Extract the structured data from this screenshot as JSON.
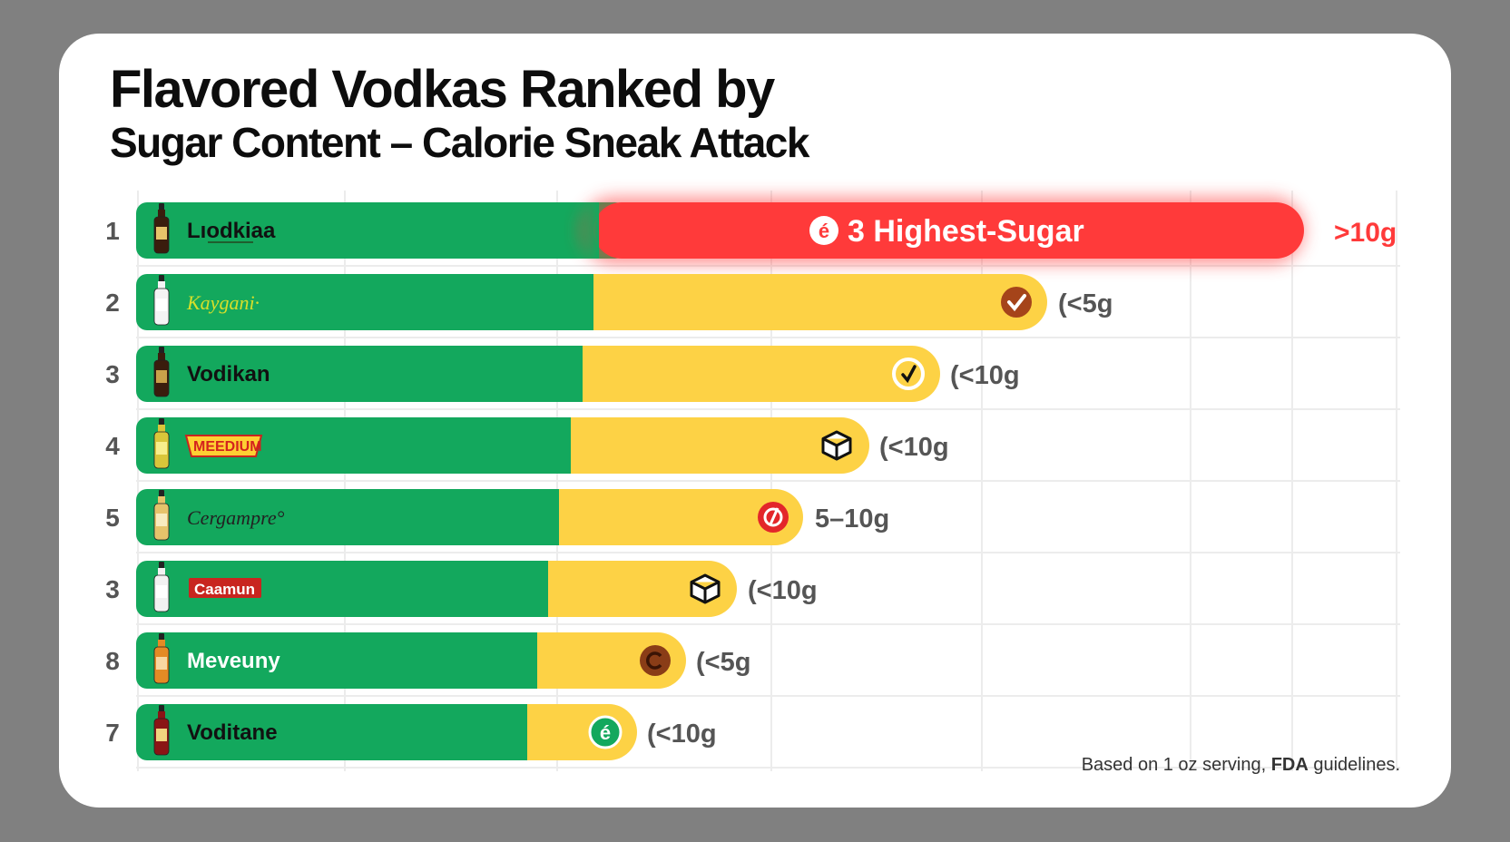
{
  "title_line1": "Flavored Vodkas Ranked by",
  "title_line2": "Sugar Content – Calorie Sneak Attack",
  "footnote_prefix": "Based on 1 oz serving, ",
  "footnote_bold": "FDA",
  "footnote_suffix": " guidelines.",
  "colors": {
    "background": "#808080",
    "card": "#ffffff",
    "green": "#13a85d",
    "yellow": "#fdd245",
    "red": "#ff3a3a",
    "text_dark": "#111111",
    "value_label": "#555555"
  },
  "chart_data": {
    "type": "bar",
    "orientation": "horizontal",
    "grid": true,
    "rows": [
      {
        "rank": "1",
        "brand": "Lıodkiaa",
        "value_label": ">10g",
        "highlight_label": "3 Highest-Sugar",
        "highlight_icon_glyph": "é",
        "icon": "bottle-icon"
      },
      {
        "rank": "2",
        "brand": "Kaygani·",
        "value_label": "(<5g",
        "icon": "check-circle-icon"
      },
      {
        "rank": "3",
        "brand": "Vodikan",
        "value_label": "(<10g",
        "icon": "check-badge-icon"
      },
      {
        "rank": "4",
        "brand": "MEEDIUM",
        "value_label": "(<10g",
        "icon": "cube-icon"
      },
      {
        "rank": "5",
        "brand": "Cergampre°",
        "value_label": "5–10g",
        "icon": "swirl-icon"
      },
      {
        "rank": "3",
        "brand": "Caamun",
        "value_label": "(<10g",
        "icon": "cube-icon"
      },
      {
        "rank": "8",
        "brand": "Meveuny",
        "value_label": "(<5g",
        "icon": "c-circle-icon"
      },
      {
        "rank": "7",
        "brand": "Voditane",
        "value_label": "(<10g",
        "icon": "e-circle-icon"
      }
    ]
  }
}
